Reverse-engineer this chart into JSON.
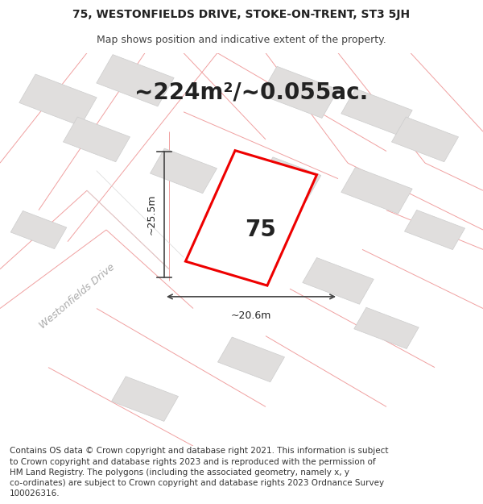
{
  "title_line1": "75, WESTONFIELDS DRIVE, STOKE-ON-TRENT, ST3 5JH",
  "title_line2": "Map shows position and indicative extent of the property.",
  "area_text": "~224m²/~0.055ac.",
  "number_text": "75",
  "width_label": "~20.6m",
  "height_label": "~25.5m",
  "street_label": "Westonfields Drive",
  "footer_text": "Contains OS data © Crown copyright and database right 2021. This information is subject to Crown copyright and database rights 2023 and is reproduced with the permission of HM Land Registry. The polygons (including the associated geometry, namely x, y co-ordinates) are subject to Crown copyright and database rights 2023 Ordnance Survey 100026316.",
  "bg_color": "#ffffff",
  "map_bg_color": "#f5f4f2",
  "building_color": "#e0dedd",
  "building_edge_color": "#cccccc",
  "road_line_color": "#f0a0a0",
  "road_line_color2": "#d8d8d8",
  "highlight_color": "#ee0000",
  "highlight_fill": "#ffffff",
  "inner_fill": "#d8d8d6",
  "text_color": "#222222",
  "dim_line_color": "#444444",
  "title_fontsize": 10,
  "subtitle_fontsize": 9,
  "area_fontsize": 20,
  "number_fontsize": 20,
  "label_fontsize": 9,
  "street_fontsize": 9,
  "footer_fontsize": 7.5
}
